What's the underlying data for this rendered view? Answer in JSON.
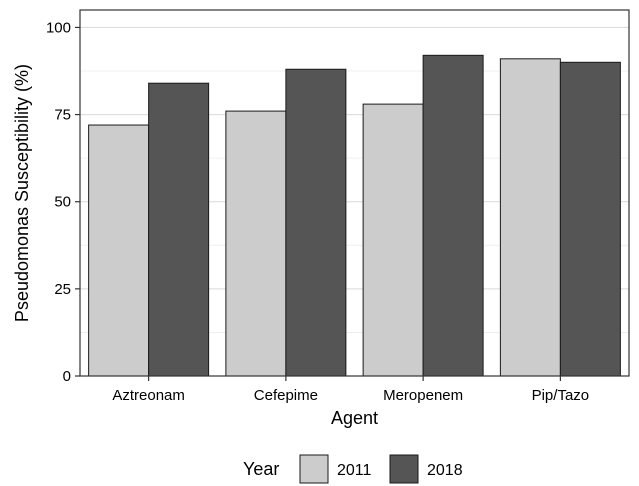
{
  "chart_data": {
    "type": "bar",
    "title": "",
    "xlabel": "Agent",
    "ylabel": "Pseudomonas Susceptibility (%)",
    "categories": [
      "Aztreonam",
      "Cefepime",
      "Meropenem",
      "Pip/Tazo"
    ],
    "series": [
      {
        "name": "2011",
        "values": [
          72,
          76,
          78,
          91
        ],
        "color": "#cccccc"
      },
      {
        "name": "2018",
        "values": [
          84,
          88,
          92,
          90
        ],
        "color": "#555555"
      }
    ],
    "ylim": [
      0,
      105
    ],
    "yticks": [
      "0",
      "25",
      "50",
      "75",
      "100"
    ],
    "grid": true,
    "legend": {
      "title": "Year",
      "position": "bottom"
    }
  }
}
